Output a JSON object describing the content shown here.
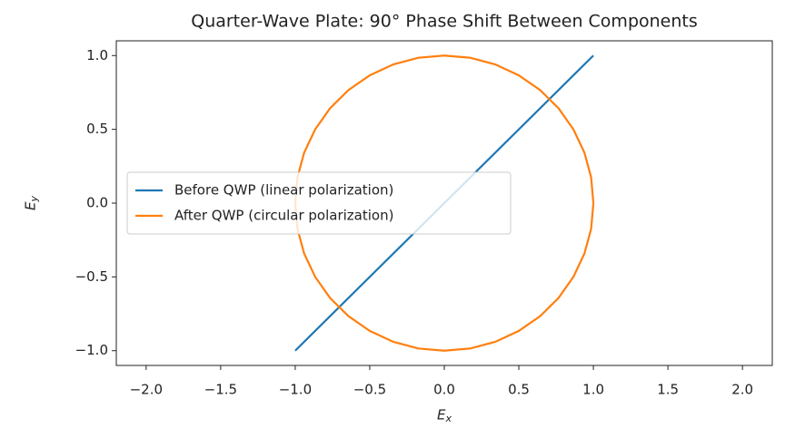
{
  "chart_data": {
    "type": "line",
    "title": "Quarter-Wave Plate: 90° Phase Shift Between Components",
    "xlabel": "Ex",
    "ylabel": "Ey",
    "xlim": [
      -2.2,
      2.2
    ],
    "ylim": [
      -1.1,
      1.1
    ],
    "xticks": [
      {
        "value": -2,
        "label": "−2.0"
      },
      {
        "value": -1.5,
        "label": "−1.5"
      },
      {
        "value": -1,
        "label": "−1.0"
      },
      {
        "value": -0.5,
        "label": "−0.5"
      },
      {
        "value": 0,
        "label": "0.0"
      },
      {
        "value": 0.5,
        "label": "0.5"
      },
      {
        "value": 1,
        "label": "1.0"
      },
      {
        "value": 1.5,
        "label": "1.5"
      },
      {
        "value": 2,
        "label": "2.0"
      }
    ],
    "yticks": [
      {
        "value": -1,
        "label": "−1.0"
      },
      {
        "value": -0.5,
        "label": "−0.5"
      },
      {
        "value": 0,
        "label": "0.0"
      },
      {
        "value": 0.5,
        "label": "0.5"
      },
      {
        "value": 1,
        "label": "1.0"
      }
    ],
    "legend": "center left",
    "series": [
      {
        "name": "Before QWP (linear polarization)",
        "color": "#1f77b4",
        "x": [
          -1,
          1
        ],
        "values": [
          -1,
          1
        ]
      },
      {
        "name": "After QWP (circular polarization)",
        "color": "#ff7f0e",
        "x": [
          1,
          0.985,
          0.94,
          0.866,
          0.766,
          0.643,
          0.5,
          0.342,
          0.174,
          0,
          -0.174,
          -0.342,
          -0.5,
          -0.643,
          -0.766,
          -0.866,
          -0.94,
          -0.985,
          -1,
          -0.985,
          -0.94,
          -0.866,
          -0.766,
          -0.643,
          -0.5,
          -0.342,
          -0.174,
          0,
          0.174,
          0.342,
          0.5,
          0.643,
          0.766,
          0.866,
          0.94,
          0.985,
          1
        ],
        "values": [
          0,
          0.174,
          0.342,
          0.5,
          0.643,
          0.766,
          0.866,
          0.94,
          0.985,
          1,
          0.985,
          0.94,
          0.866,
          0.766,
          0.643,
          0.5,
          0.342,
          0.174,
          0,
          -0.174,
          -0.342,
          -0.5,
          -0.643,
          -0.766,
          -0.866,
          -0.94,
          -0.985,
          -1,
          -0.985,
          -0.94,
          -0.866,
          -0.766,
          -0.643,
          -0.5,
          -0.342,
          -0.174,
          0
        ]
      }
    ]
  }
}
